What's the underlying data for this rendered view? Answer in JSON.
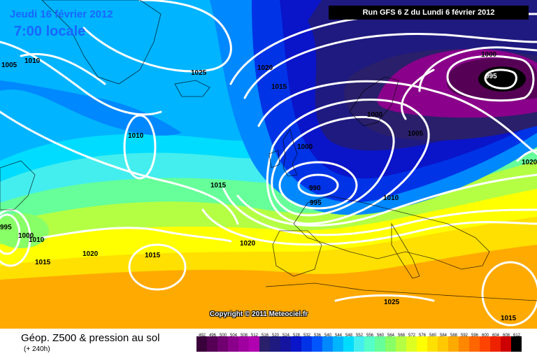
{
  "header": {
    "date": "Jeudi 16 février 2012",
    "time": "7:00 locale",
    "run": "Run GFS 6 Z du Lundi 6 février 2012"
  },
  "copyright": "Copyright © 2011 Meteociel.fr",
  "footer": {
    "title": "Géop. Z500 & pression au sol",
    "subtitle": "(+ 240h)"
  },
  "scale": {
    "values": [
      "492",
      "496",
      "500",
      "504",
      "508",
      "512",
      "516",
      "520",
      "524",
      "528",
      "532",
      "536",
      "540",
      "544",
      "548",
      "552",
      "556",
      "560",
      "564",
      "568",
      "572",
      "576",
      "580",
      "584",
      "588",
      "592",
      "596",
      "600",
      "604",
      "608",
      "612"
    ],
    "colors": [
      "#3a003a",
      "#550055",
      "#700070",
      "#8a008a",
      "#a000a0",
      "#b000b0",
      "#2a1f6a",
      "#1f1a80",
      "#1414a0",
      "#0a14c8",
      "#0033e6",
      "#0055ff",
      "#0088ff",
      "#00b4ff",
      "#00dcff",
      "#44eeee",
      "#55ffc8",
      "#66ff99",
      "#88ff66",
      "#b4ff44",
      "#ddff22",
      "#ffff00",
      "#ffe000",
      "#ffc800",
      "#ffaa00",
      "#ff8800",
      "#ff6600",
      "#ff4400",
      "#ee2200",
      "#cc0000",
      "#000000"
    ]
  },
  "isobars": [
    {
      "value": "1005",
      "ref": "lbl1005a"
    },
    {
      "value": "1010",
      "ref": "lbl1010a"
    },
    {
      "value": "1025",
      "ref": "lbl1025a"
    },
    {
      "value": "1020",
      "ref": "lbl1020a"
    },
    {
      "value": "1015",
      "ref": "lbl1015a"
    },
    {
      "value": "1000",
      "ref": "lbl1000a"
    },
    {
      "value": "995",
      "ref": "lbl995a"
    },
    {
      "value": "1000",
      "ref": "lbl1000b"
    },
    {
      "value": "1005",
      "ref": "lbl1005b"
    },
    {
      "value": "1010",
      "ref": "lbl1010b"
    },
    {
      "value": "1000",
      "ref": "lbl1000c"
    },
    {
      "value": "990",
      "ref": "lbl990"
    },
    {
      "value": "995",
      "ref": "lbl995b"
    },
    {
      "value": "1010",
      "ref": "lbl1010c"
    },
    {
      "value": "1015",
      "ref": "lbl1015b"
    },
    {
      "value": "1020",
      "ref": "lbl1020b"
    },
    {
      "value": "1020",
      "ref": "lbl1020c"
    },
    {
      "value": "1015",
      "ref": "lbl1015c"
    },
    {
      "value": "1015",
      "ref": "lbl1015d"
    },
    {
      "value": "1025",
      "ref": "lbl1025b"
    },
    {
      "value": "1015",
      "ref": "lbl1015e"
    },
    {
      "value": "995",
      "ref": "lbl995c"
    },
    {
      "value": "1000",
      "ref": "lbl1000d"
    },
    {
      "value": "1010",
      "ref": "lbl1010d"
    },
    {
      "value": "1020",
      "ref": "lbl1020d"
    }
  ]
}
